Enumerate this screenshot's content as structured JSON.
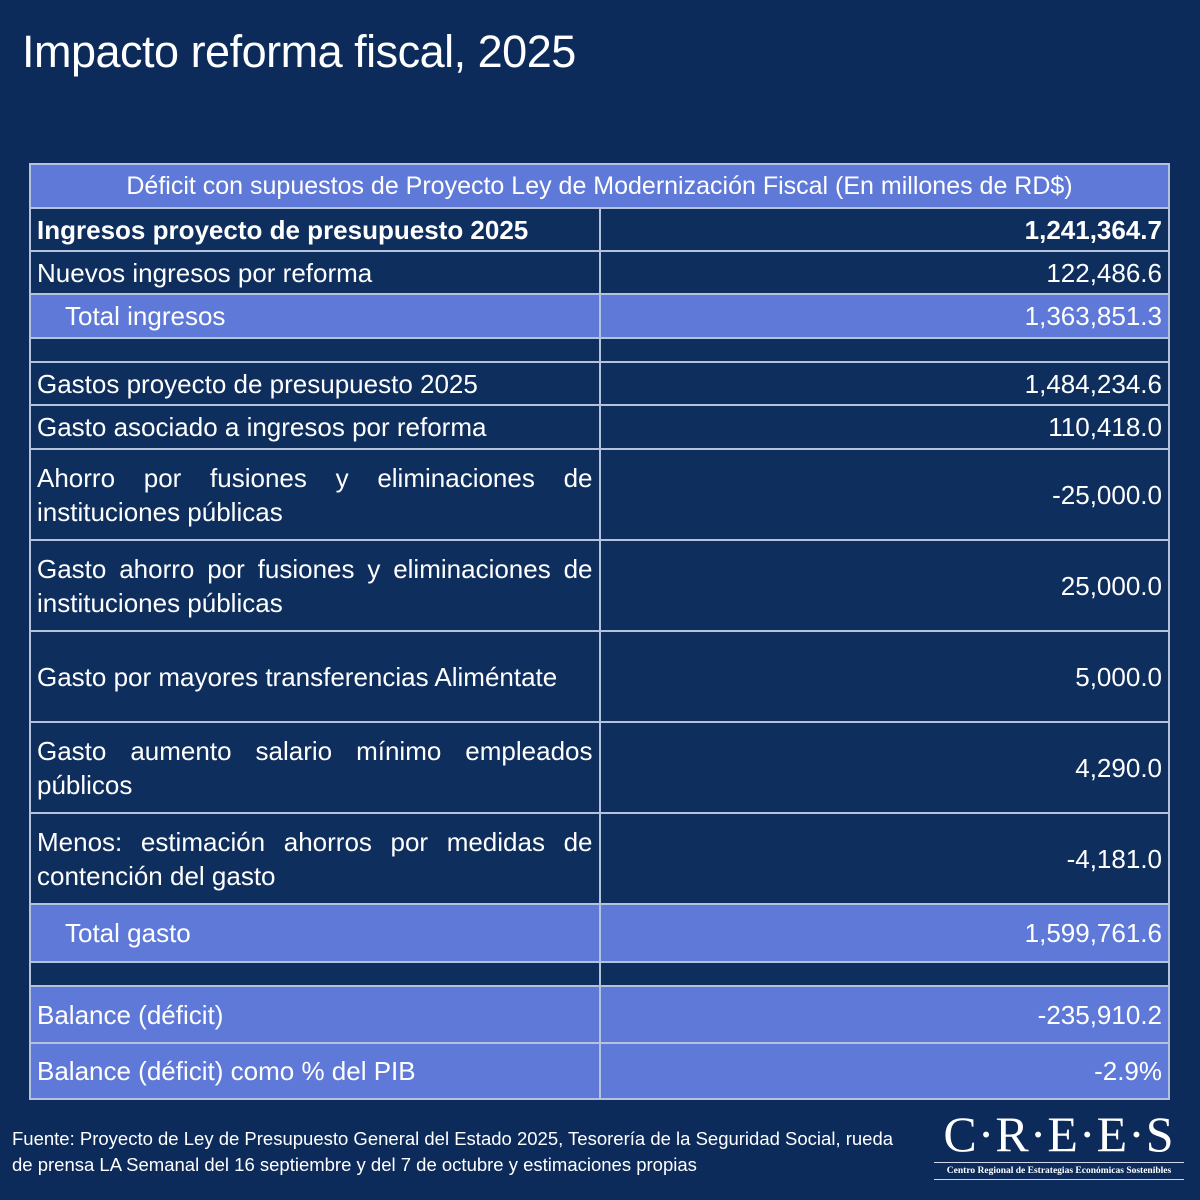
{
  "title": "Impacto reforma fiscal, 2025",
  "table": {
    "header": "Déficit con supuestos de Proyecto Ley de Modernización Fiscal (En millones de RD$)",
    "rows": [
      {
        "label": "Ingresos proyecto de presupuesto 2025",
        "value": "1,241,364.7"
      },
      {
        "label": "Nuevos ingresos por reforma",
        "value": "122,486.6"
      },
      {
        "label": "Total ingresos",
        "value": "1,363,851.3"
      },
      {
        "label": "",
        "value": ""
      },
      {
        "label": "Gastos proyecto de presupuesto 2025",
        "value": "1,484,234.6"
      },
      {
        "label": "Gasto asociado a ingresos por reforma",
        "value": "110,418.0"
      },
      {
        "label": "Ahorro por fusiones y eliminaciones de instituciones públicas",
        "value": "-25,000.0"
      },
      {
        "label": "Gasto ahorro por fusiones y eliminaciones de instituciones públicas",
        "value": "25,000.0"
      },
      {
        "label": "Gasto por mayores transferencias Aliméntate",
        "value": "5,000.0"
      },
      {
        "label": "Gasto aumento salario mínimo empleados públicos",
        "value": "4,290.0"
      },
      {
        "label": "Menos: estimación ahorros por medidas de contención del gasto",
        "value": "-4,181.0"
      },
      {
        "label": "Total gasto",
        "value": "1,599,761.6"
      },
      {
        "label": "",
        "value": ""
      },
      {
        "label": "Balance (déficit)",
        "value": "-235,910.2"
      },
      {
        "label": "Balance (déficit) como % del PIB",
        "value": "-2.9%"
      }
    ]
  },
  "source": "Fuente: Proyecto de Ley de Presupuesto General del Estado 2025, Tesorería de la Seguridad Social, rueda de prensa LA Semanal del 16 septiembre y del 7 de octubre y estimaciones propias",
  "logo": {
    "name": "C·R·E·E·S",
    "subtitle": "Centro Regional de Estrategias Económicas Sostenibles"
  },
  "colors": {
    "background": "#0c2b5b",
    "highlight": "#5f79d9",
    "border": "#b5c2dc"
  }
}
